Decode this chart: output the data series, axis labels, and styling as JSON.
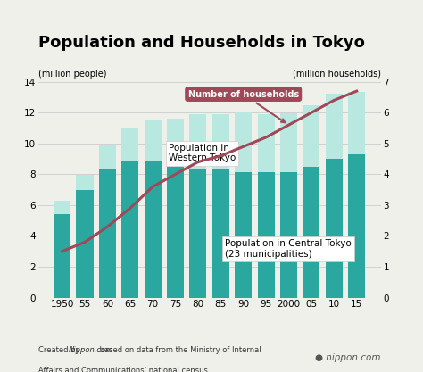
{
  "title": "Population and Households in Tokyo",
  "ylabel_left": "(million people)",
  "ylabel_right": "(million households)",
  "years": [
    1950,
    1955,
    1960,
    1965,
    1970,
    1975,
    1980,
    1985,
    1990,
    1995,
    2000,
    2005,
    2010,
    2015
  ],
  "central_pop": [
    5.4,
    6.97,
    8.31,
    8.89,
    8.84,
    8.47,
    8.35,
    8.35,
    8.16,
    8.16,
    8.13,
    8.49,
    9.0,
    9.27
  ],
  "western_pop": [
    0.88,
    0.98,
    1.55,
    2.16,
    2.74,
    3.14,
    3.53,
    3.56,
    3.85,
    3.74,
    3.84,
    3.99,
    4.22,
    4.08
  ],
  "households": [
    1.5,
    1.8,
    2.3,
    2.9,
    3.6,
    4.0,
    4.4,
    4.6,
    4.9,
    5.2,
    5.6,
    6.0,
    6.4,
    6.7
  ],
  "bar_color_central": "#2aa8a0",
  "bar_color_western": "#b8e8e0",
  "line_color": "#a04858",
  "ylim_left": [
    0,
    14
  ],
  "ylim_right": [
    0,
    7
  ],
  "yticks_left": [
    0,
    2,
    4,
    6,
    8,
    10,
    12,
    14
  ],
  "yticks_right": [
    0,
    1,
    2,
    3,
    4,
    5,
    6,
    7
  ],
  "background_color": "#f0f0eb",
  "annotation_households": "Number of households",
  "annotation_western": "Population in\nWestern Tokyo",
  "annotation_central": "Population in Central Tokyo\n(23 municipalities)",
  "source_text_normal": "Created by ",
  "source_text_italic": "Nippon.com",
  "source_text_rest": " based on data from the Ministry of Internal\nAffairs and Communications’ national census.",
  "title_fontsize": 13,
  "label_fontsize": 7,
  "tick_fontsize": 7.5
}
